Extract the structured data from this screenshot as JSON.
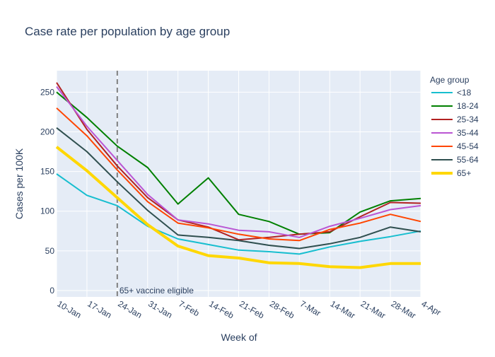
{
  "chart_data": {
    "type": "line",
    "title": "Case rate per population by age group",
    "xlabel": "Week of",
    "ylabel": "Cases per 100K",
    "categories": [
      "10-Jan",
      "17-Jan",
      "24-Jan",
      "31-Jan",
      "7-Feb",
      "14-Feb",
      "21-Feb",
      "28-Feb",
      "7-Mar",
      "14-Mar",
      "21-Mar",
      "28-Mar",
      "4-Apr"
    ],
    "ylim": [
      -8,
      277
    ],
    "yticks": [
      0,
      50,
      100,
      150,
      200,
      250
    ],
    "grid": true,
    "legend": {
      "title": "Age group",
      "position": "right"
    },
    "series": [
      {
        "name": "<18",
        "color": "#17becf",
        "width": 2,
        "values": [
          147,
          120,
          107,
          81,
          65,
          58,
          51,
          49,
          46,
          55,
          62,
          68,
          75
        ]
      },
      {
        "name": "18-24",
        "color": "#008000",
        "width": 2,
        "values": [
          250,
          218,
          182,
          155,
          109,
          142,
          96,
          87,
          71,
          73,
          99,
          113,
          116
        ]
      },
      {
        "name": "25-34",
        "color": "#b22222",
        "width": 2,
        "values": [
          262,
          203,
          157,
          117,
          89,
          80,
          64,
          67,
          71,
          74,
          93,
          111,
          110
        ]
      },
      {
        "name": "35-44",
        "color": "#ba55d3",
        "width": 2,
        "values": [
          257,
          207,
          164,
          121,
          89,
          84,
          76,
          74,
          67,
          81,
          91,
          102,
          107
        ]
      },
      {
        "name": "45-54",
        "color": "#ff4500",
        "width": 2,
        "values": [
          230,
          195,
          152,
          112,
          85,
          79,
          71,
          65,
          63,
          77,
          85,
          96,
          87
        ]
      },
      {
        "name": "55-64",
        "color": "#2f4f4f",
        "width": 2,
        "values": [
          205,
          175,
          137,
          101,
          70,
          67,
          63,
          57,
          53,
          59,
          67,
          80,
          74
        ]
      },
      {
        "name": "65+",
        "color": "#ffd700",
        "width": 4,
        "values": [
          181,
          151,
          117,
          83,
          56,
          44,
          41,
          35,
          34,
          30,
          29,
          34,
          34
        ]
      }
    ],
    "annotations": [
      {
        "type": "vline",
        "x": "24-Jan",
        "style": "dashed",
        "color": "#808080",
        "text": "65+ vaccine eligible"
      }
    ]
  }
}
